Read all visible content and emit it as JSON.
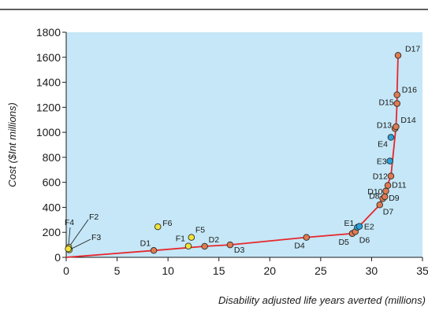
{
  "chart_data": {
    "type": "scatter",
    "xlabel": "Disability adjusted life years averted (millions)",
    "ylabel": "Cost ($Int millions)",
    "xlim": [
      0,
      35
    ],
    "ylim": [
      0,
      1800
    ],
    "xticks": [
      0,
      5,
      10,
      15,
      20,
      25,
      30,
      35
    ],
    "yticks": [
      0,
      200,
      400,
      600,
      800,
      1000,
      1200,
      1400,
      1600,
      1800
    ],
    "grid": false,
    "colors": {
      "background": "#c5e7f7",
      "frontier": "#e8262b",
      "D": "#e07b4f",
      "E": "#2aa3dd",
      "F": "#f2e438"
    },
    "points": [
      {
        "label": "D1",
        "group": "D",
        "x": 8.6,
        "y": 55
      },
      {
        "label": "D2",
        "group": "D",
        "x": 13.6,
        "y": 88
      },
      {
        "label": "D3",
        "group": "D",
        "x": 16.1,
        "y": 100
      },
      {
        "label": "D4",
        "group": "D",
        "x": 23.6,
        "y": 160
      },
      {
        "label": "D5",
        "group": "D",
        "x": 28.1,
        "y": 190
      },
      {
        "label": "D6",
        "group": "D",
        "x": 28.4,
        "y": 205
      },
      {
        "label": "D7",
        "group": "D",
        "x": 30.8,
        "y": 420
      },
      {
        "label": "D8",
        "group": "D",
        "x": 31.1,
        "y": 470
      },
      {
        "label": "D9",
        "group": "D",
        "x": 31.3,
        "y": 485
      },
      {
        "label": "D10",
        "group": "D",
        "x": 31.4,
        "y": 530
      },
      {
        "label": "D11",
        "group": "D",
        "x": 31.6,
        "y": 575
      },
      {
        "label": "D12",
        "group": "D",
        "x": 31.9,
        "y": 650
      },
      {
        "label": "D13",
        "group": "D",
        "x": 32.3,
        "y": 1030
      },
      {
        "label": "D14",
        "group": "D",
        "x": 32.4,
        "y": 1045
      },
      {
        "label": "D15",
        "group": "D",
        "x": 32.5,
        "y": 1230
      },
      {
        "label": "D16",
        "group": "D",
        "x": 32.5,
        "y": 1300
      },
      {
        "label": "D17",
        "group": "D",
        "x": 32.6,
        "y": 1615
      },
      {
        "label": "E1",
        "group": "E",
        "x": 28.6,
        "y": 240
      },
      {
        "label": "E2",
        "group": "E",
        "x": 28.8,
        "y": 248
      },
      {
        "label": "E3",
        "group": "E",
        "x": 31.8,
        "y": 770
      },
      {
        "label": "E4",
        "group": "E",
        "x": 31.9,
        "y": 960
      },
      {
        "label": "F1",
        "group": "F",
        "x": 12.0,
        "y": 90
      },
      {
        "label": "F2",
        "group": "F",
        "x": 0.25,
        "y": 80
      },
      {
        "label": "F3",
        "group": "F",
        "x": 0.3,
        "y": 60
      },
      {
        "label": "F4",
        "group": "F",
        "x": 0.2,
        "y": 68
      },
      {
        "label": "F5",
        "group": "F",
        "x": 12.3,
        "y": 160
      },
      {
        "label": "F6",
        "group": "F",
        "x": 9.0,
        "y": 245
      }
    ],
    "frontier": [
      {
        "x": 0,
        "y": 0
      },
      {
        "x": 8.6,
        "y": 55
      },
      {
        "x": 13.6,
        "y": 88
      },
      {
        "x": 16.1,
        "y": 100
      },
      {
        "x": 23.6,
        "y": 160
      },
      {
        "x": 28.1,
        "y": 190
      },
      {
        "x": 30.8,
        "y": 420
      },
      {
        "x": 31.9,
        "y": 650
      },
      {
        "x": 32.4,
        "y": 1045
      },
      {
        "x": 32.5,
        "y": 1230
      },
      {
        "x": 32.5,
        "y": 1300
      },
      {
        "x": 32.6,
        "y": 1615
      }
    ]
  }
}
